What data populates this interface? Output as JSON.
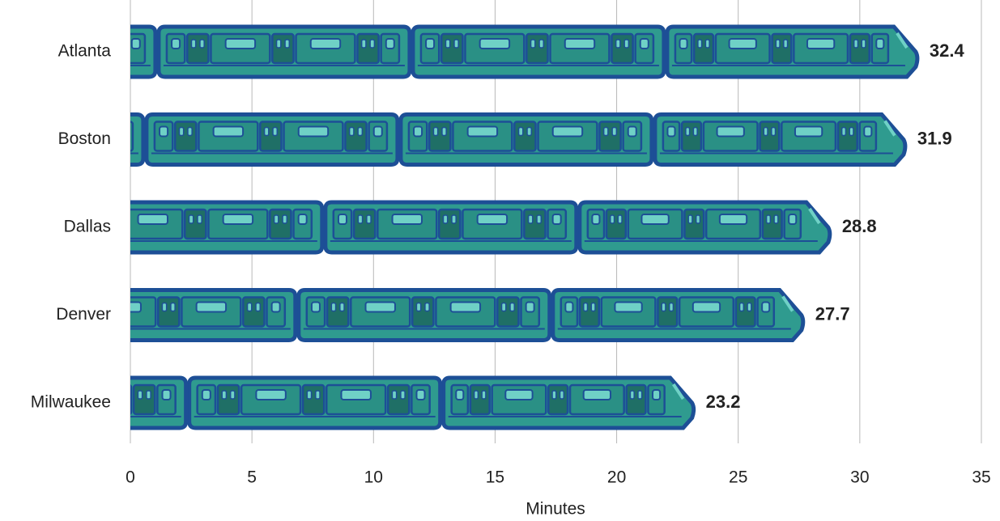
{
  "chart_data": {
    "type": "bar",
    "orientation": "horizontal",
    "x_label": "Minutes",
    "categories": [
      "Atlanta",
      "Boston",
      "Dallas",
      "Denver",
      "Milwaukee"
    ],
    "values": [
      32.4,
      31.9,
      28.8,
      27.7,
      23.2
    ],
    "color": "#2f9b8f",
    "xlim": [
      0,
      35
    ],
    "xticks": [
      0,
      5,
      10,
      15,
      20,
      25,
      30,
      35
    ],
    "grid": true
  }
}
